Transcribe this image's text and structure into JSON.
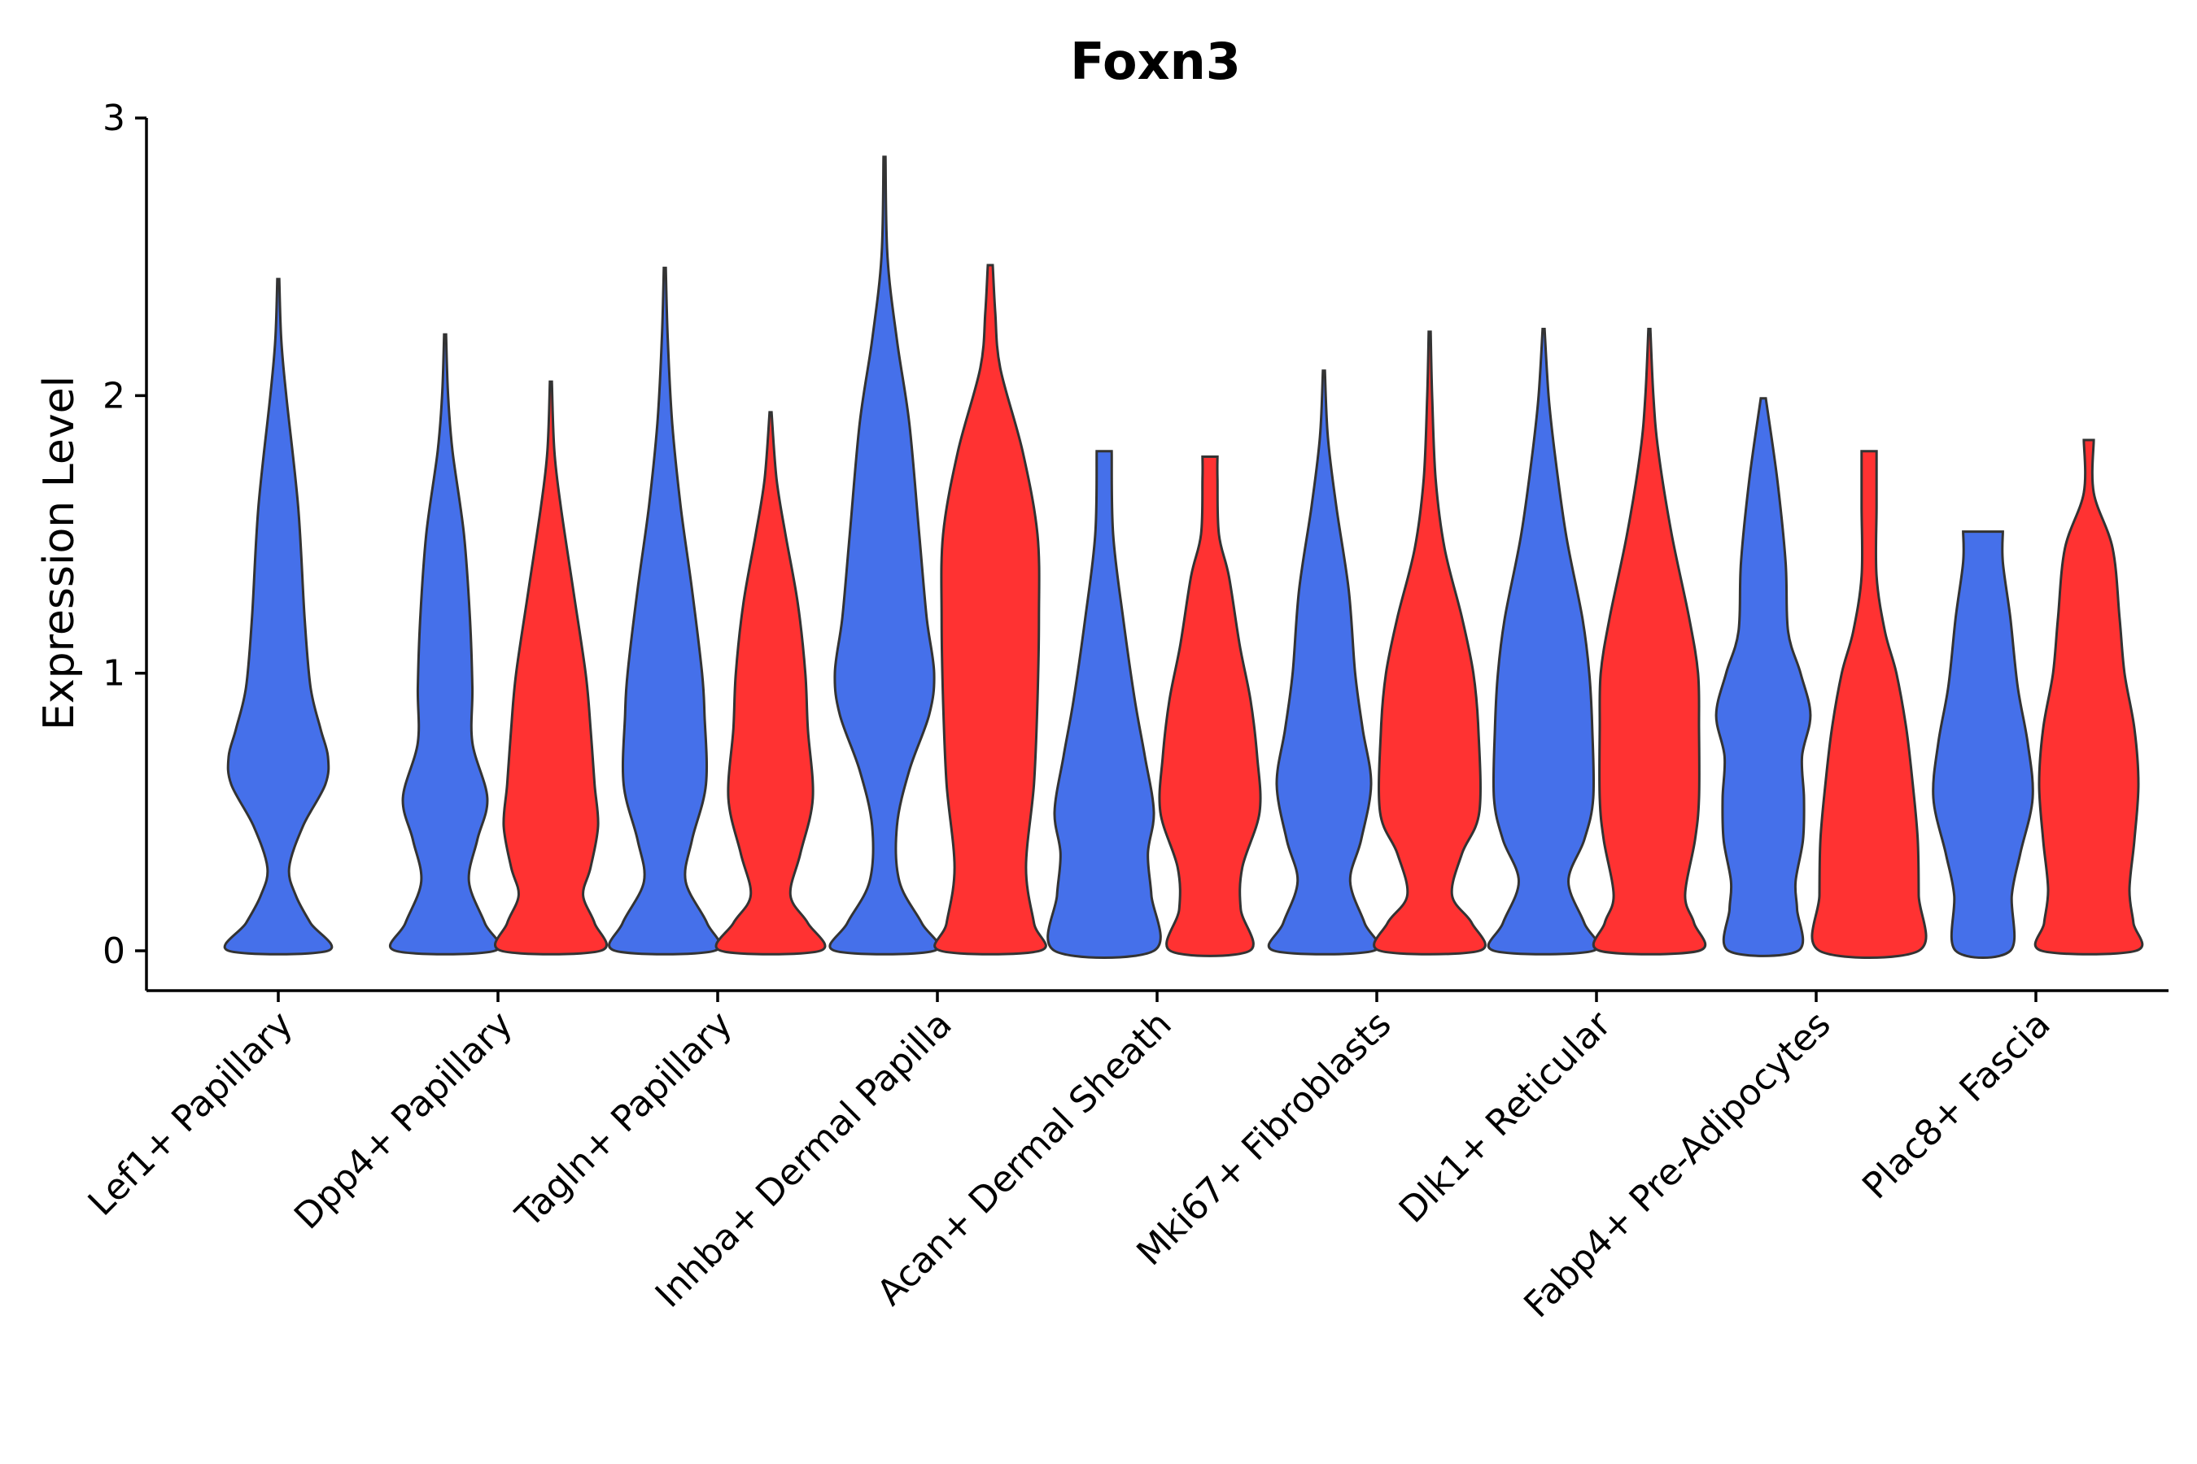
{
  "chart_data": {
    "type": "violin",
    "title": "Foxn3",
    "xlabel": "",
    "ylabel": "Expression Level",
    "ylim": [
      -0.15,
      3.0
    ],
    "yticks": [
      0,
      1,
      2,
      3
    ],
    "grid": false,
    "legend": "none",
    "groups": [
      {
        "name": "blue",
        "color": "#4570EA"
      },
      {
        "name": "red",
        "color": "#FF3232"
      }
    ],
    "categories": [
      {
        "label": "Lef1+ Papillary",
        "violins": [
          {
            "group": "blue",
            "max": 2.42,
            "profile": [
              [
                0,
                1.0
              ],
              [
                0.1,
                0.65
              ],
              [
                0.2,
                0.35
              ],
              [
                0.3,
                0.22
              ],
              [
                0.45,
                0.5
              ],
              [
                0.6,
                0.95
              ],
              [
                0.7,
                1.0
              ],
              [
                0.8,
                0.85
              ],
              [
                0.95,
                0.65
              ],
              [
                1.2,
                0.53
              ],
              [
                1.6,
                0.4
              ],
              [
                2.0,
                0.16
              ],
              [
                2.2,
                0.06
              ],
              [
                2.42,
                0.02
              ]
            ]
          }
        ]
      },
      {
        "label": "Dpp4+ Papillary",
        "violins": [
          {
            "group": "blue",
            "max": 2.22,
            "profile": [
              [
                0,
                1.0
              ],
              [
                0.1,
                0.8
              ],
              [
                0.25,
                0.48
              ],
              [
                0.4,
                0.65
              ],
              [
                0.55,
                0.85
              ],
              [
                0.75,
                0.55
              ],
              [
                0.95,
                0.55
              ],
              [
                1.2,
                0.5
              ],
              [
                1.5,
                0.38
              ],
              [
                1.8,
                0.15
              ],
              [
                2.0,
                0.06
              ],
              [
                2.22,
                0.02
              ]
            ]
          },
          {
            "group": "red",
            "max": 2.05,
            "profile": [
              [
                0,
                1.0
              ],
              [
                0.1,
                0.88
              ],
              [
                0.2,
                0.65
              ],
              [
                0.3,
                0.8
              ],
              [
                0.45,
                0.95
              ],
              [
                0.6,
                0.88
              ],
              [
                0.8,
                0.8
              ],
              [
                1.0,
                0.7
              ],
              [
                1.3,
                0.45
              ],
              [
                1.6,
                0.2
              ],
              [
                1.8,
                0.07
              ],
              [
                2.05,
                0.02
              ]
            ]
          }
        ]
      },
      {
        "label": "Tagln+ Papillary",
        "violins": [
          {
            "group": "blue",
            "max": 2.46,
            "profile": [
              [
                0,
                1.0
              ],
              [
                0.1,
                0.85
              ],
              [
                0.25,
                0.42
              ],
              [
                0.4,
                0.55
              ],
              [
                0.6,
                0.83
              ],
              [
                0.85,
                0.8
              ],
              [
                1.0,
                0.75
              ],
              [
                1.3,
                0.55
              ],
              [
                1.6,
                0.32
              ],
              [
                1.9,
                0.15
              ],
              [
                2.2,
                0.06
              ],
              [
                2.46,
                0.02
              ]
            ]
          },
          {
            "group": "red",
            "max": 1.94,
            "profile": [
              [
                0,
                1.0
              ],
              [
                0.1,
                0.75
              ],
              [
                0.2,
                0.4
              ],
              [
                0.35,
                0.6
              ],
              [
                0.55,
                0.85
              ],
              [
                0.8,
                0.75
              ],
              [
                1.0,
                0.7
              ],
              [
                1.25,
                0.55
              ],
              [
                1.5,
                0.3
              ],
              [
                1.7,
                0.12
              ],
              [
                1.94,
                0.02
              ]
            ]
          }
        ]
      },
      {
        "label": "Inhba+ Dermal Papilla",
        "violins": [
          {
            "group": "blue",
            "max": 2.86,
            "profile": [
              [
                0,
                1.0
              ],
              [
                0.1,
                0.75
              ],
              [
                0.25,
                0.3
              ],
              [
                0.45,
                0.25
              ],
              [
                0.65,
                0.5
              ],
              [
                0.85,
                0.9
              ],
              [
                1.0,
                1.0
              ],
              [
                1.2,
                0.85
              ],
              [
                1.5,
                0.7
              ],
              [
                1.9,
                0.5
              ],
              [
                2.2,
                0.25
              ],
              [
                2.5,
                0.06
              ],
              [
                2.86,
                0.02
              ]
            ]
          },
          {
            "group": "red",
            "max": 2.47,
            "profile": [
              [
                0,
                1.0
              ],
              [
                0.1,
                0.88
              ],
              [
                0.3,
                0.72
              ],
              [
                0.6,
                0.88
              ],
              [
                0.9,
                0.95
              ],
              [
                1.2,
                0.98
              ],
              [
                1.5,
                0.95
              ],
              [
                1.8,
                0.65
              ],
              [
                2.1,
                0.2
              ],
              [
                2.3,
                0.1
              ],
              [
                2.47,
                0.05
              ]
            ]
          }
        ]
      },
      {
        "label": "Acan+ Dermal Sheath",
        "violins": [
          {
            "group": "blue",
            "max": 1.8,
            "profile": [
              [
                0,
                1.0
              ],
              [
                0.2,
                0.95
              ],
              [
                0.35,
                0.88
              ],
              [
                0.5,
                1.0
              ],
              [
                0.7,
                0.82
              ],
              [
                0.9,
                0.62
              ],
              [
                1.2,
                0.38
              ],
              [
                1.5,
                0.18
              ],
              [
                1.8,
                0.15
              ]
            ]
          },
          {
            "group": "red",
            "max": 1.78,
            "profile": [
              [
                0,
                0.8
              ],
              [
                0.15,
                0.62
              ],
              [
                0.3,
                0.65
              ],
              [
                0.5,
                1.0
              ],
              [
                0.7,
                0.95
              ],
              [
                0.9,
                0.82
              ],
              [
                1.1,
                0.6
              ],
              [
                1.35,
                0.38
              ],
              [
                1.5,
                0.18
              ],
              [
                1.7,
                0.15
              ],
              [
                1.78,
                0.15
              ]
            ]
          }
        ]
      },
      {
        "label": "Mki67+ Fibroblasts",
        "violins": [
          {
            "group": "blue",
            "max": 2.09,
            "profile": [
              [
                0,
                1.0
              ],
              [
                0.1,
                0.82
              ],
              [
                0.25,
                0.53
              ],
              [
                0.4,
                0.75
              ],
              [
                0.6,
                0.95
              ],
              [
                0.8,
                0.78
              ],
              [
                1.0,
                0.63
              ],
              [
                1.3,
                0.5
              ],
              [
                1.6,
                0.25
              ],
              [
                1.85,
                0.08
              ],
              [
                2.09,
                0.02
              ]
            ]
          },
          {
            "group": "red",
            "max": 2.23,
            "profile": [
              [
                0,
                1.0
              ],
              [
                0.1,
                0.85
              ],
              [
                0.2,
                0.45
              ],
              [
                0.35,
                0.65
              ],
              [
                0.5,
                1.0
              ],
              [
                0.8,
                0.98
              ],
              [
                1.0,
                0.88
              ],
              [
                1.2,
                0.65
              ],
              [
                1.45,
                0.3
              ],
              [
                1.7,
                0.12
              ],
              [
                2.0,
                0.05
              ],
              [
                2.23,
                0.02
              ]
            ]
          }
        ]
      },
      {
        "label": "Dlk1+ Reticular",
        "violins": [
          {
            "group": "blue",
            "max": 2.24,
            "profile": [
              [
                0,
                1.0
              ],
              [
                0.1,
                0.82
              ],
              [
                0.25,
                0.5
              ],
              [
                0.4,
                0.82
              ],
              [
                0.55,
                1.0
              ],
              [
                0.8,
                0.98
              ],
              [
                1.0,
                0.92
              ],
              [
                1.2,
                0.78
              ],
              [
                1.5,
                0.45
              ],
              [
                1.8,
                0.22
              ],
              [
                2.0,
                0.1
              ],
              [
                2.24,
                0.02
              ]
            ]
          },
          {
            "group": "red",
            "max": 2.24,
            "profile": [
              [
                0,
                1.0
              ],
              [
                0.1,
                0.9
              ],
              [
                0.2,
                0.72
              ],
              [
                0.4,
                0.92
              ],
              [
                0.55,
                1.0
              ],
              [
                0.8,
                1.0
              ],
              [
                1.0,
                0.98
              ],
              [
                1.2,
                0.8
              ],
              [
                1.5,
                0.45
              ],
              [
                1.8,
                0.18
              ],
              [
                2.0,
                0.08
              ],
              [
                2.24,
                0.02
              ]
            ]
          }
        ]
      },
      {
        "label": "Fabp4+ Pre-Adipocytes",
        "violins": [
          {
            "group": "blue",
            "max": 1.99,
            "profile": [
              [
                0,
                0.7
              ],
              [
                0.15,
                0.68
              ],
              [
                0.25,
                0.65
              ],
              [
                0.4,
                0.8
              ],
              [
                0.55,
                0.82
              ],
              [
                0.7,
                0.78
              ],
              [
                0.85,
                0.95
              ],
              [
                1.0,
                0.75
              ],
              [
                1.15,
                0.5
              ],
              [
                1.4,
                0.45
              ],
              [
                1.7,
                0.28
              ],
              [
                1.99,
                0.05
              ]
            ]
          },
          {
            "group": "red",
            "max": 1.8,
            "profile": [
              [
                0,
                1.0
              ],
              [
                0.2,
                1.0
              ],
              [
                0.4,
                0.98
              ],
              [
                0.6,
                0.88
              ],
              [
                0.8,
                0.75
              ],
              [
                1.0,
                0.55
              ],
              [
                1.15,
                0.32
              ],
              [
                1.35,
                0.15
              ],
              [
                1.6,
                0.15
              ],
              [
                1.8,
                0.15
              ]
            ]
          }
        ]
      },
      {
        "label": "Plac8+ Fascia",
        "violins": [
          {
            "group": "blue",
            "max": 1.51,
            "profile": [
              [
                0,
                0.55
              ],
              [
                0.2,
                0.58
              ],
              [
                0.35,
                0.75
              ],
              [
                0.55,
                1.0
              ],
              [
                0.75,
                0.9
              ],
              [
                0.95,
                0.7
              ],
              [
                1.2,
                0.55
              ],
              [
                1.4,
                0.4
              ],
              [
                1.51,
                0.4
              ]
            ]
          },
          {
            "group": "red",
            "max": 1.84,
            "profile": [
              [
                0,
                0.95
              ],
              [
                0.1,
                0.9
              ],
              [
                0.22,
                0.82
              ],
              [
                0.4,
                0.92
              ],
              [
                0.6,
                1.0
              ],
              [
                0.8,
                0.92
              ],
              [
                1.0,
                0.72
              ],
              [
                1.2,
                0.62
              ],
              [
                1.45,
                0.48
              ],
              [
                1.65,
                0.1
              ],
              [
                1.84,
                0.1
              ]
            ]
          }
        ]
      }
    ]
  }
}
